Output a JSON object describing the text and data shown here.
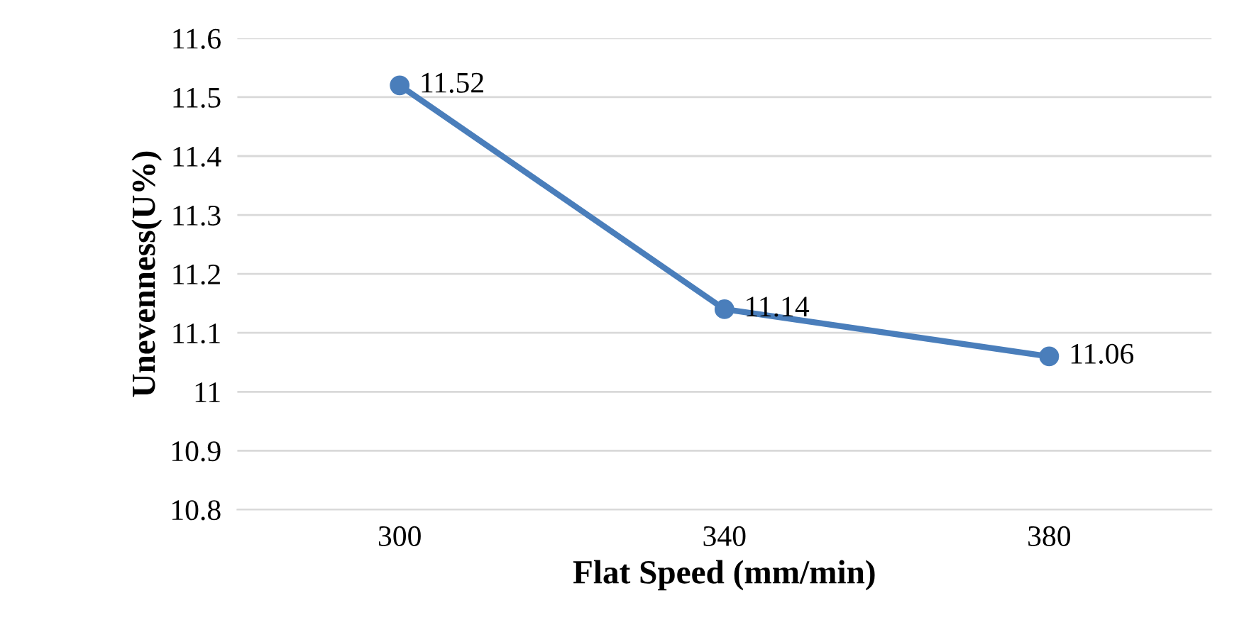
{
  "chart_data": {
    "type": "line",
    "xlabel": "Flat Speed (mm/min)",
    "ylabel": "Unevenness(U%)",
    "categories": [
      "300",
      "340",
      "380"
    ],
    "series": [
      {
        "color": "#4a7ebb",
        "values": [
          11.52,
          11.14,
          11.06
        ]
      }
    ],
    "ylim": [
      10.8,
      11.6
    ],
    "yticks": [
      10.8,
      10.9,
      11,
      11.1,
      11.2,
      11.3,
      11.4,
      11.5,
      11.6
    ],
    "grid": "y",
    "marker": "circle",
    "line_style": "solid",
    "data_labels": true,
    "legend": false
  }
}
